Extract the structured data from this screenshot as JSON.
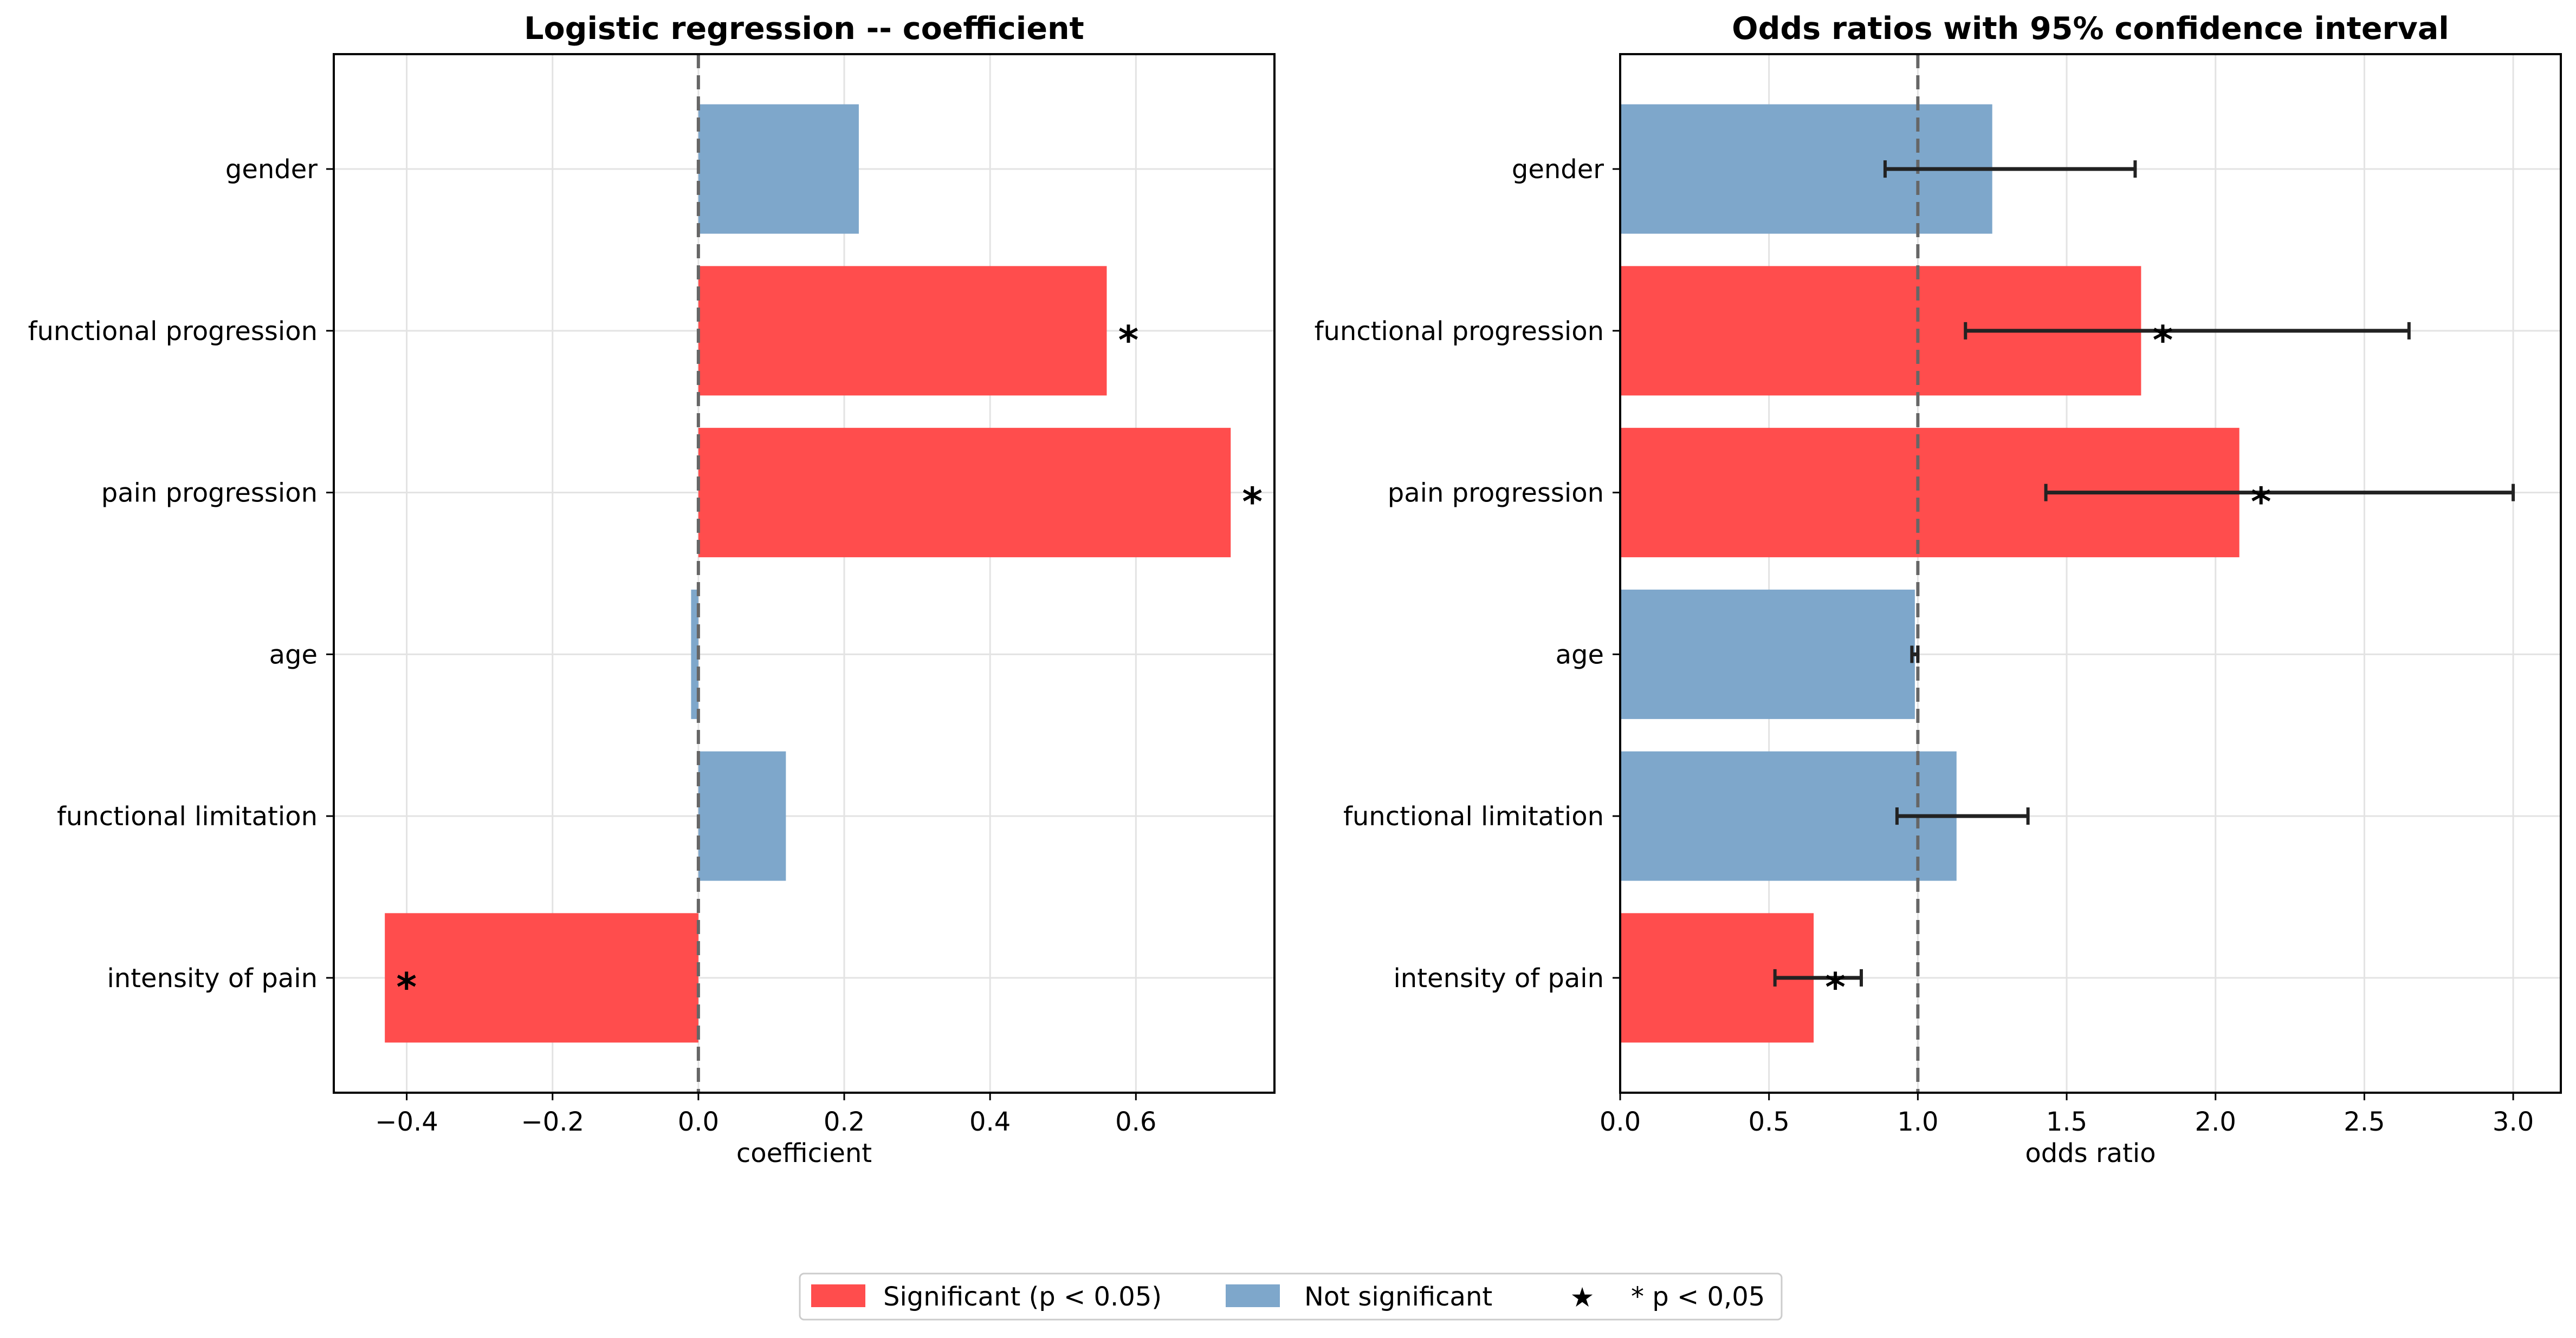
{
  "colors": {
    "significant": "#ff4d4d",
    "not_significant": "#7ea7cb",
    "axis": "#000000",
    "grid": "#e3e3e3",
    "refline": "#666666",
    "errorbar": "#222222"
  },
  "chart_data": [
    {
      "type": "bar",
      "orientation": "horizontal",
      "title": "Logistic regression -- coefficient",
      "xlabel": "coefficient",
      "ylabel": "",
      "xlim": [
        -0.5,
        0.79
      ],
      "xticks": [
        -0.4,
        -0.2,
        0.0,
        0.2,
        0.4,
        0.6
      ],
      "xtick_labels": [
        "−0.4",
        "−0.2",
        "0.0",
        "0.2",
        "0.4",
        "0.6"
      ],
      "reference_line": 0,
      "grid": true,
      "categories": [
        "gender",
        "functional progression",
        "pain progression",
        "age",
        "functional limitation",
        "intensity of pain"
      ],
      "values": [
        0.22,
        0.56,
        0.73,
        -0.01,
        0.12,
        -0.43
      ],
      "significant": [
        false,
        true,
        true,
        false,
        false,
        true
      ],
      "marker_text": "*"
    },
    {
      "type": "bar",
      "orientation": "horizontal",
      "title": "Odds ratios with 95% confidence interval",
      "xlabel": "odds ratio",
      "ylabel": "",
      "xlim": [
        0.0,
        3.16
      ],
      "xticks": [
        0.0,
        0.5,
        1.0,
        1.5,
        2.0,
        2.5,
        3.0
      ],
      "xtick_labels": [
        "0.0",
        "0.5",
        "1.0",
        "1.5",
        "2.0",
        "2.5",
        "3.0"
      ],
      "reference_line": 1.0,
      "grid": true,
      "categories": [
        "gender",
        "functional progression",
        "pain progression",
        "age",
        "functional limitation",
        "intensity of pain"
      ],
      "values": [
        1.25,
        1.75,
        2.08,
        0.99,
        1.13,
        0.65
      ],
      "ci_lower": [
        0.89,
        1.16,
        1.43,
        0.98,
        0.93,
        0.52
      ],
      "ci_upper": [
        1.73,
        2.65,
        3.0,
        1.0,
        1.37,
        0.81
      ],
      "significant": [
        false,
        true,
        true,
        false,
        false,
        true
      ],
      "marker_text": "*"
    }
  ],
  "legend": {
    "placement": "bottom-center",
    "items": [
      {
        "label": "Significant (p < 0.05)",
        "kind": "significant"
      },
      {
        "label": "Not significant",
        "kind": "not_significant"
      },
      {
        "label": "* p < 0,05",
        "kind": "star"
      }
    ]
  }
}
